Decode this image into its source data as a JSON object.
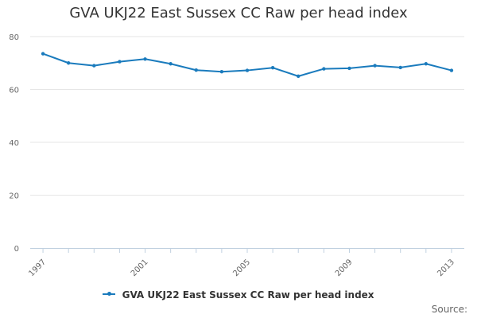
{
  "chart_data": {
    "type": "line",
    "title": "GVA UKJ22 East Sussex CC Raw per head index",
    "xlabel": "",
    "ylabel": "",
    "x": [
      1997,
      1998,
      1999,
      2000,
      2001,
      2002,
      2003,
      2004,
      2005,
      2006,
      2007,
      2008,
      2009,
      2010,
      2011,
      2012,
      2013
    ],
    "x_tick_labels": [
      "1997",
      "2001",
      "2005",
      "2009",
      "2013"
    ],
    "y_tick_labels": [
      "0",
      "20",
      "40",
      "60",
      "80"
    ],
    "ylim": [
      0,
      80
    ],
    "grid": true,
    "legend_position": "bottom",
    "series": [
      {
        "name": "GVA UKJ22 East Sussex CC Raw per head index",
        "color": "#1a7bbd",
        "values": [
          73.5,
          70.0,
          69.0,
          70.5,
          71.5,
          69.7,
          67.3,
          66.7,
          67.2,
          68.2,
          65.0,
          67.8,
          68.0,
          69.0,
          68.3,
          69.7,
          67.2
        ]
      }
    ]
  },
  "source_label": "Source:"
}
